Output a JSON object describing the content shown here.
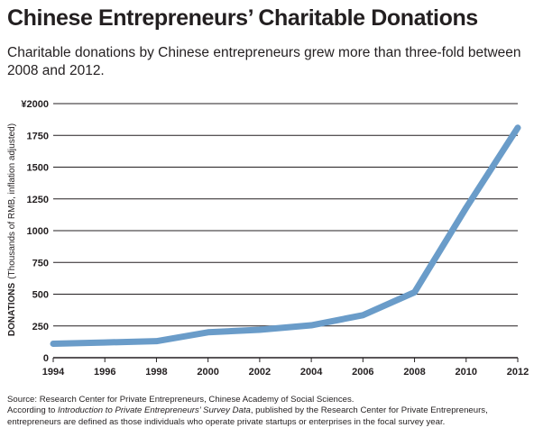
{
  "title": "Chinese Entrepreneurs’ Charitable Donations",
  "subtitle": "Charitable donations by Chinese entrepreneurs grew more than three-fold between 2008 and 2012.",
  "footnotes": {
    "source": "Source: Research Center for Private Entrepreneurs, Chinese Academy of Social Sciences.",
    "note_prefix": "According to ",
    "note_italic": "Introduction to Private Entrepreneurs’ Survey Data",
    "note_suffix": ", published by the Research Center for Private Entrepreneurs, entrepreneurs are defined as those individuals who operate private startups or enterprises in the focal survey year."
  },
  "colors": {
    "line": "#6a9cc9",
    "grid": "#231f20",
    "text": "#231f20"
  },
  "chart_data": {
    "type": "line",
    "title": "Chinese Entrepreneurs’ Charitable Donations",
    "ylabel_bold": "DONATIONS",
    "ylabel_rest": "(Thousands of RMB, inflation adjusted)",
    "xlabel": "",
    "x": [
      1994,
      1996,
      1998,
      2000,
      2002,
      2004,
      2006,
      2008,
      2010,
      2012
    ],
    "x_tick_labels": [
      "1994",
      "1996",
      "1998",
      "2000",
      "2002",
      "2004",
      "2006",
      "2008",
      "2010",
      "2012"
    ],
    "y_tick_values": [
      0,
      250,
      500,
      750,
      1000,
      1250,
      1500,
      1750,
      2000
    ],
    "y_tick_labels": [
      "0",
      "250",
      "500",
      "750",
      "1000",
      "1250",
      "1500",
      "1750",
      "¥2000"
    ],
    "xlim": [
      1994,
      2012
    ],
    "ylim": [
      0,
      2000
    ],
    "grid": "horizontal",
    "series": [
      {
        "values": [
          110,
          120,
          130,
          200,
          220,
          255,
          335,
          515,
          1180,
          1810
        ]
      }
    ]
  }
}
